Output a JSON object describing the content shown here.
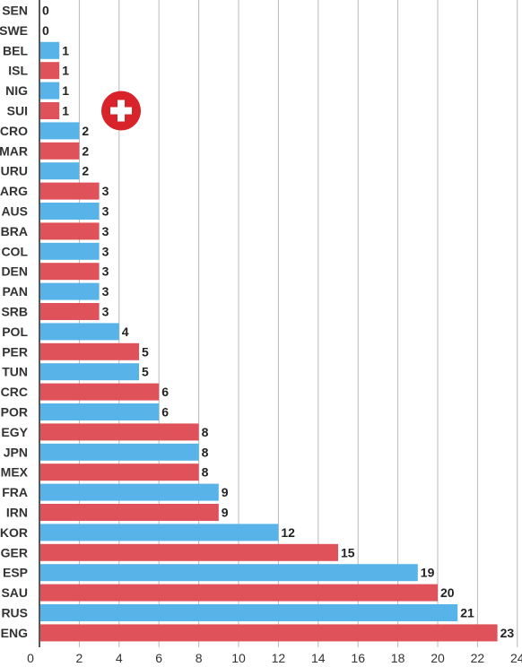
{
  "chart_data": {
    "type": "bar",
    "orientation": "horizontal",
    "categories": [
      "SEN",
      "SWE",
      "BEL",
      "ISL",
      "NIG",
      "SUI",
      "CRO",
      "MAR",
      "URU",
      "ARG",
      "AUS",
      "BRA",
      "COL",
      "DEN",
      "PAN",
      "SRB",
      "POL",
      "PER",
      "TUN",
      "CRC",
      "POR",
      "EGY",
      "JPN",
      "MEX",
      "FRA",
      "IRN",
      "KOR",
      "GER",
      "ESP",
      "SAU",
      "RUS",
      "ENG"
    ],
    "values": [
      0,
      0,
      1,
      1,
      1,
      1,
      2,
      2,
      2,
      3,
      3,
      3,
      3,
      3,
      3,
      3,
      4,
      5,
      5,
      6,
      6,
      8,
      8,
      8,
      9,
      9,
      12,
      15,
      19,
      20,
      21,
      23
    ],
    "bar_colors": [
      "#58b4e8",
      "#e0525a",
      "#58b4e8",
      "#e0525a",
      "#58b4e8",
      "#e0525a",
      "#58b4e8",
      "#e0525a",
      "#58b4e8",
      "#e0525a",
      "#58b4e8",
      "#e0525a",
      "#58b4e8",
      "#e0525a",
      "#58b4e8",
      "#e0525a",
      "#58b4e8",
      "#e0525a",
      "#58b4e8",
      "#e0525a",
      "#58b4e8",
      "#e0525a",
      "#58b4e8",
      "#e0525a",
      "#58b4e8",
      "#e0525a",
      "#58b4e8",
      "#e0525a",
      "#58b4e8",
      "#e0525a",
      "#58b4e8",
      "#e0525a"
    ],
    "xticks": [
      0,
      2,
      4,
      6,
      8,
      10,
      12,
      14,
      16,
      18,
      20,
      22,
      24
    ],
    "xlim": [
      0,
      24.6
    ],
    "title": "",
    "xlabel": "",
    "ylabel": "",
    "grid": true,
    "data_labels": true
  },
  "marker": {
    "icon": "swiss-cross-icon",
    "color": "#d8232a",
    "category": "SUI"
  }
}
